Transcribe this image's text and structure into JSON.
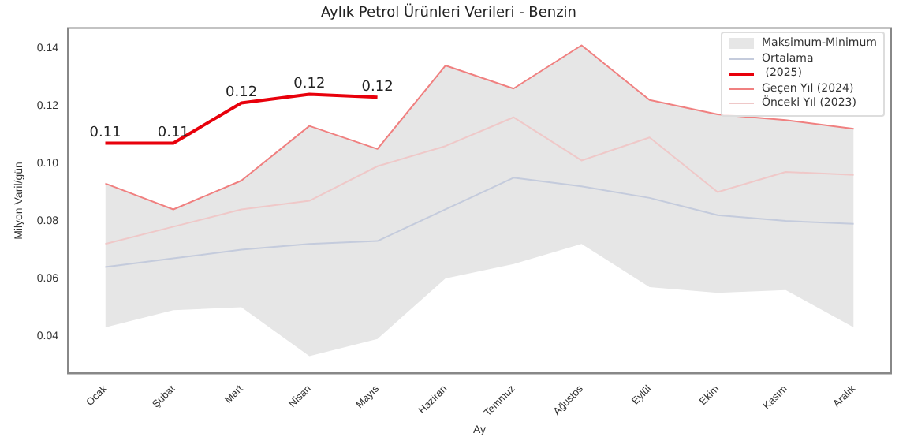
{
  "chart_data": {
    "type": "line",
    "title": "Aylık Petrol Ürünleri Verileri - Benzin",
    "xlabel": "Ay",
    "ylabel": "Milyon Varil/gün",
    "categories": [
      "Ocak",
      "Şubat",
      "Mart",
      "Nisan",
      "Mayıs",
      "Haziran",
      "Temmuz",
      "Ağustos",
      "Eylül",
      "Ekim",
      "Kasım",
      "Aralık"
    ],
    "series": [
      {
        "name": "Maksimum-Minimum",
        "type": "area",
        "color": "#e6e6e6",
        "values": [
          null,
          null,
          null,
          null,
          null,
          null,
          null,
          null,
          null,
          null,
          null,
          null
        ],
        "upper": [
          0.093,
          0.084,
          0.094,
          0.113,
          0.105,
          0.134,
          0.126,
          0.141,
          0.122,
          0.117,
          0.115,
          0.112
        ],
        "lower": [
          0.043,
          0.049,
          0.05,
          0.033,
          0.039,
          0.06,
          0.065,
          0.072,
          0.057,
          0.055,
          0.056,
          0.043
        ]
      },
      {
        "name": "Ortalama",
        "color": "#c4cbdc",
        "values": [
          0.064,
          0.067,
          0.07,
          0.072,
          0.073,
          0.084,
          0.095,
          0.092,
          0.088,
          0.082,
          0.08,
          0.079
        ]
      },
      {
        "name": " (2025)",
        "color": "#e8000b",
        "values": [
          0.107,
          0.107,
          0.121,
          0.124,
          0.123,
          null,
          null,
          null,
          null,
          null,
          null,
          null
        ],
        "value_labels": [
          "0.11",
          "0.11",
          "0.12",
          "0.12",
          "0.12",
          null,
          null,
          null,
          null,
          null,
          null,
          null
        ]
      },
      {
        "name": "Geçen Yıl (2024)",
        "color": "#f08080",
        "values": [
          0.093,
          0.084,
          0.094,
          0.113,
          0.105,
          0.134,
          0.126,
          0.141,
          0.122,
          0.117,
          0.115,
          0.112
        ]
      },
      {
        "name": "Önceki Yıl (2023)",
        "color": "#efc8c8",
        "values": [
          0.072,
          0.078,
          0.084,
          0.087,
          0.099,
          0.106,
          0.116,
          0.101,
          0.109,
          0.09,
          0.097,
          0.096
        ]
      }
    ],
    "ylim": [
      0.027,
      0.147
    ],
    "yticks": [
      0.04,
      0.06,
      0.08,
      {
        "value": 0.1,
        "label": "0.10"
      },
      0.12,
      0.14
    ],
    "grid": false,
    "legend": "top right",
    "marker": "none",
    "line_style": "solid"
  }
}
